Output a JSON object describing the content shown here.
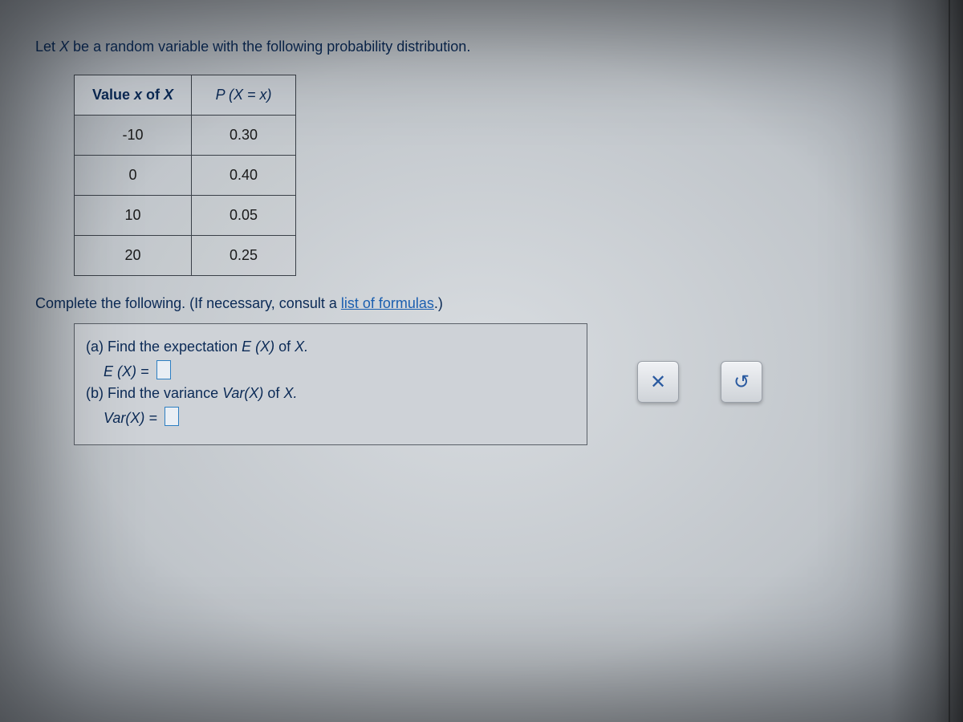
{
  "intro_prefix": "Let ",
  "intro_var": "X",
  "intro_rest": " be a random variable with the following probability distribution.",
  "table": {
    "header_left_prefix": "Value ",
    "header_left_var": "x",
    "header_left_of": " of ",
    "header_left_bigvar": "X",
    "header_right": "P (X = x)",
    "rows": [
      {
        "x": "-10",
        "p": "0.30"
      },
      {
        "x": "0",
        "p": "0.40"
      },
      {
        "x": "10",
        "p": "0.05"
      },
      {
        "x": "20",
        "p": "0.25"
      }
    ]
  },
  "instr_prefix": "Complete the following. (If necessary, consult a ",
  "instr_link": "list of formulas",
  "instr_suffix": ".)",
  "qa": {
    "a_prompt_prefix": "(a) Find the expectation ",
    "a_prompt_e": "E (X)",
    "a_prompt_of": " of ",
    "a_prompt_var": "X.",
    "a_eq_lhs": "E (X) = ",
    "b_prompt_prefix": "(b) Find the variance ",
    "b_prompt_v": "Var(X)",
    "b_prompt_of": " of ",
    "b_prompt_var": "X.",
    "b_eq_lhs": "Var(X) = "
  },
  "colors": {
    "text_primary": "#0b2a56",
    "link": "#1b5fb0",
    "border": "#3a4048",
    "panel_bg": "#ced2d7",
    "button_fg": "#2a5aa0"
  }
}
